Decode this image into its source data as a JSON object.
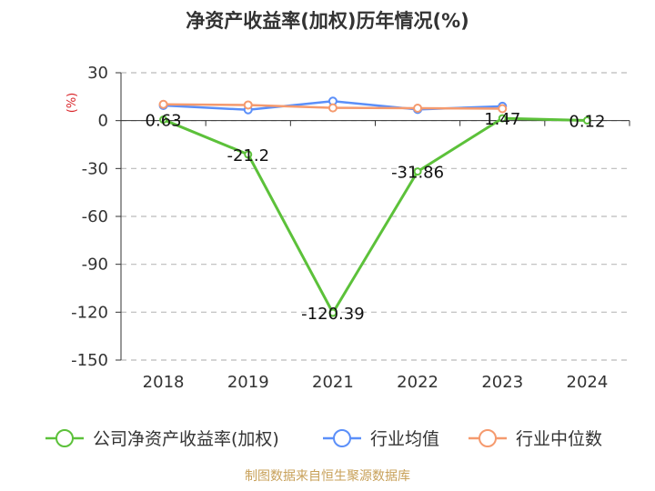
{
  "chart_data": {
    "type": "line",
    "title": "净资产收益率(加权)历年情况(%)",
    "unit_label": "(%)",
    "categories": [
      "2018",
      "2019",
      "2021",
      "2022",
      "2023",
      "2024"
    ],
    "ylim": [
      -150,
      30
    ],
    "yticks": [
      30,
      0,
      -30,
      -60,
      -90,
      -120,
      -150
    ],
    "grid": true,
    "legend_position": "bottom",
    "series": [
      {
        "name": "公司净资产收益率(加权)",
        "color": "#5cc13a",
        "values": [
          0.63,
          -21.2,
          -120.39,
          -31.86,
          1.47,
          0.12
        ],
        "labels": [
          "0.63",
          "-21.2",
          "-120.39",
          "-31.86",
          "1.47",
          "0.12"
        ]
      },
      {
        "name": "行业均值",
        "color": "#5b8ff9",
        "values": [
          9.5,
          6.8,
          12.2,
          7.0,
          9.0,
          null
        ]
      },
      {
        "name": "行业中位数",
        "color": "#f59a6e",
        "values": [
          10.2,
          9.8,
          8.0,
          7.8,
          7.5,
          null
        ]
      }
    ]
  },
  "footer": {
    "source": "制图数据来自恒生聚源数据库"
  }
}
